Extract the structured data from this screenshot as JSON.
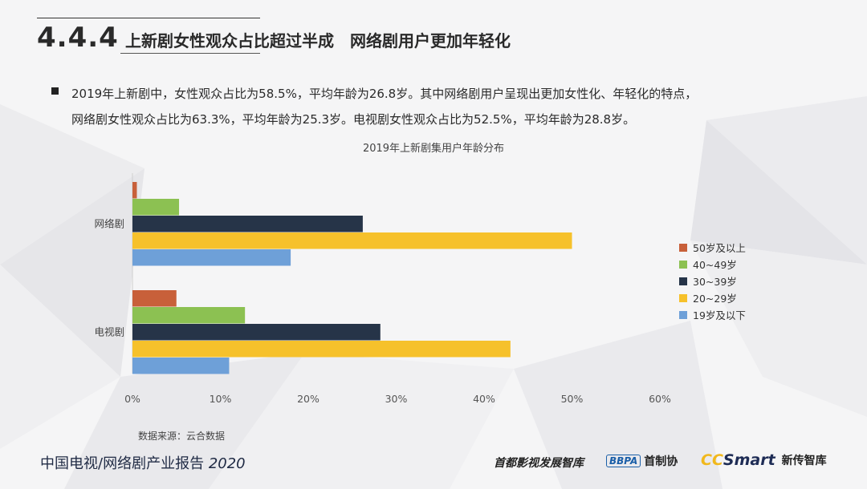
{
  "header": {
    "number": "4.4.4",
    "title": "上新剧女性观众占比超过半成　网络剧用户更加年轻化"
  },
  "bullet": {
    "line1": "2019年上新剧中，女性观众占比为58.5%，平均年龄为26.8岁。其中网络剧用户呈现出更加女性化、年轻化的特点，",
    "line2": "网络剧女性观众占比为63.3%，平均年龄为25.3岁。电视剧女性观众占比为52.5%，平均年龄为28.8岁。"
  },
  "chart_data": {
    "type": "bar",
    "orientation": "horizontal",
    "title": "2019年上新剧集用户年龄分布",
    "categories": [
      "网络剧",
      "电视剧"
    ],
    "series": [
      {
        "name": "50岁及以上",
        "color": "#c8603a",
        "values": [
          0.5,
          5
        ]
      },
      {
        "name": "40~49岁",
        "color": "#8cc152",
        "values": [
          5.3,
          12.8
        ]
      },
      {
        "name": "30~39岁",
        "color": "#263448",
        "values": [
          26.2,
          28.2
        ]
      },
      {
        "name": "20~29岁",
        "color": "#f6c12b",
        "values": [
          50,
          43
        ]
      },
      {
        "name": "19岁及以下",
        "color": "#6ea0d8",
        "values": [
          18,
          11
        ]
      }
    ],
    "xlim": [
      0,
      60
    ],
    "xticks": [
      "0%",
      "10%",
      "20%",
      "30%",
      "40%",
      "50%",
      "60%"
    ],
    "legend_position": "right",
    "grid": false
  },
  "source": "数据来源：云合数据",
  "footer": {
    "report_title": "中国电视/网络剧产业报告",
    "report_year": "2020",
    "logo1": "首都影视发展智库",
    "logo2_box": "BBPA",
    "logo2_text": "首制协",
    "logo3_cc": "CC",
    "logo3_smart": "Smart",
    "logo3_cn": "新传智库"
  }
}
